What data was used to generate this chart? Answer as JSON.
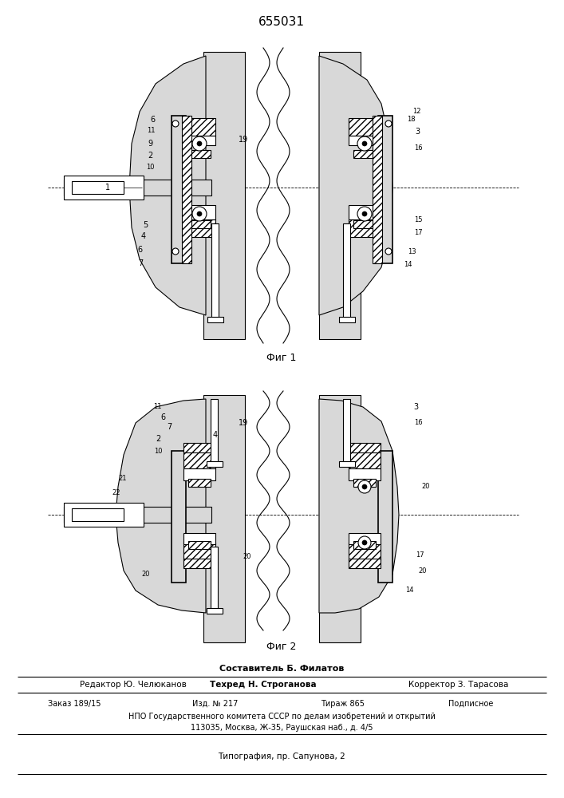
{
  "patent_number": "655031",
  "fig1_label": "Фиг 1",
  "fig2_label": "Фиг 2",
  "composer_line": "Составитель Б. Филатов",
  "editor_label": "Редактор Ю. Челюканов",
  "techred_label": "Техред Н. Строганова",
  "corrector_label": "Корректор З. Тарасова",
  "npo_line": "НПО Государственного комитета СССР по делам изобретений и открытий",
  "address_line": "113035, Москва, Ж-35, Раушская наб., д. 4/5",
  "typography_line": "Типография, пр. Сапунова, 2",
  "bg_color": "#ffffff",
  "line_color": "#000000"
}
